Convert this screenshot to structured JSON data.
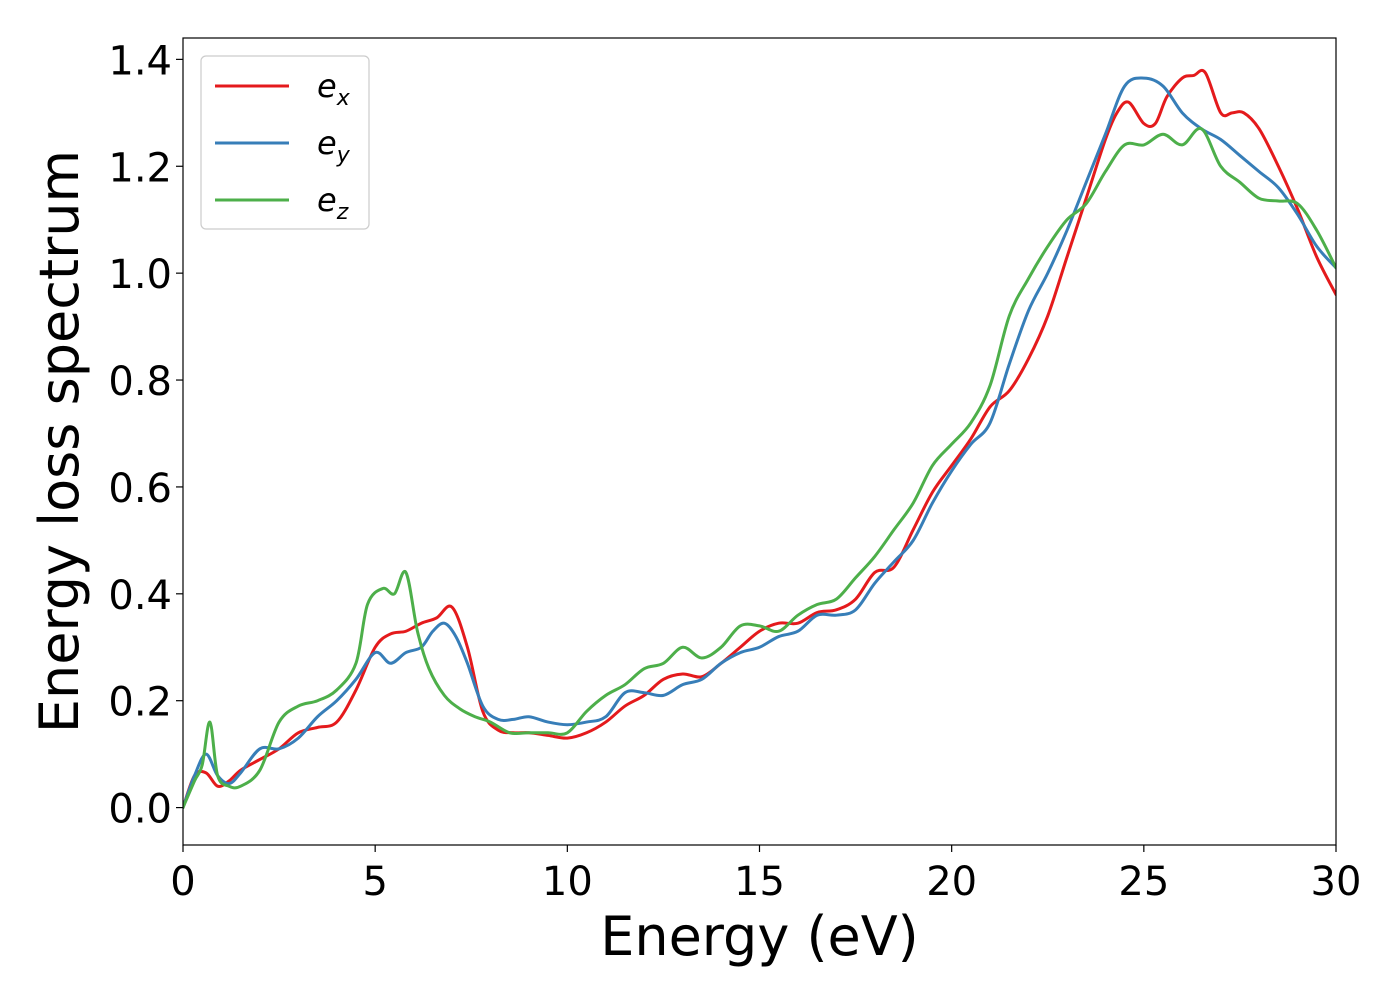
{
  "chart_data": {
    "type": "line",
    "title": "",
    "xlabel": "Energy (eV)",
    "ylabel": "Energy loss spectrum",
    "xlim": [
      0,
      30
    ],
    "ylim": [
      -0.07,
      1.44
    ],
    "xticks": [
      0,
      5,
      10,
      15,
      20,
      25,
      30
    ],
    "xtick_labels": [
      "0",
      "5",
      "10",
      "15",
      "20",
      "25",
      "30"
    ],
    "yticks": [
      0.0,
      0.2,
      0.4,
      0.6,
      0.8,
      1.0,
      1.2,
      1.4
    ],
    "ytick_labels": [
      "0.0",
      "0.2",
      "0.4",
      "0.6",
      "0.8",
      "1.0",
      "1.2",
      "1.4"
    ],
    "grid": false,
    "legend_position": "top-left",
    "series": [
      {
        "name": "e",
        "subscript": "x",
        "color": "#e41a1c",
        "x": [
          0,
          0.3,
          0.6,
          0.9,
          1.2,
          1.5,
          2,
          2.5,
          3,
          3.5,
          4,
          4.5,
          5,
          5.4,
          5.8,
          6.2,
          6.6,
          7,
          7.4,
          7.8,
          8.2,
          8.6,
          9,
          9.5,
          10,
          10.5,
          11,
          11.5,
          12,
          12.5,
          13,
          13.5,
          14,
          14.5,
          15,
          15.5,
          16,
          16.5,
          17,
          17.5,
          18,
          18.5,
          19,
          19.5,
          20,
          20.5,
          21,
          21.5,
          22,
          22.5,
          23,
          23.5,
          24,
          24.3,
          24.6,
          25,
          25.3,
          25.6,
          26,
          26.3,
          26.6,
          27,
          27.3,
          27.6,
          28,
          28.5,
          29,
          29.5,
          30
        ],
        "y": [
          0.0,
          0.06,
          0.065,
          0.04,
          0.05,
          0.07,
          0.09,
          0.11,
          0.14,
          0.15,
          0.16,
          0.22,
          0.3,
          0.325,
          0.33,
          0.345,
          0.355,
          0.375,
          0.3,
          0.18,
          0.145,
          0.14,
          0.14,
          0.135,
          0.13,
          0.14,
          0.16,
          0.19,
          0.21,
          0.24,
          0.25,
          0.245,
          0.27,
          0.3,
          0.33,
          0.345,
          0.345,
          0.365,
          0.37,
          0.39,
          0.44,
          0.45,
          0.52,
          0.59,
          0.64,
          0.69,
          0.75,
          0.78,
          0.84,
          0.92,
          1.03,
          1.14,
          1.25,
          1.3,
          1.32,
          1.28,
          1.28,
          1.33,
          1.365,
          1.37,
          1.375,
          1.3,
          1.3,
          1.3,
          1.27,
          1.2,
          1.12,
          1.03,
          0.96
        ]
      },
      {
        "name": "e",
        "subscript": "y",
        "color": "#377eb8",
        "x": [
          0,
          0.3,
          0.6,
          0.9,
          1.2,
          1.5,
          2,
          2.5,
          3,
          3.5,
          4,
          4.5,
          5,
          5.4,
          5.8,
          6.2,
          6.5,
          6.8,
          7.1,
          7.4,
          7.8,
          8.2,
          8.6,
          9,
          9.5,
          10,
          10.5,
          11,
          11.5,
          12,
          12.5,
          13,
          13.5,
          14,
          14.5,
          15,
          15.5,
          16,
          16.5,
          17,
          17.5,
          18,
          18.5,
          19,
          19.5,
          20,
          20.5,
          21,
          21.5,
          22,
          22.5,
          23,
          23.5,
          24,
          24.5,
          25,
          25.5,
          26,
          26.5,
          27,
          27.5,
          28,
          28.5,
          29,
          29.5,
          30
        ],
        "y": [
          0.0,
          0.06,
          0.1,
          0.06,
          0.045,
          0.065,
          0.11,
          0.11,
          0.13,
          0.17,
          0.2,
          0.24,
          0.29,
          0.27,
          0.29,
          0.3,
          0.33,
          0.345,
          0.32,
          0.27,
          0.19,
          0.165,
          0.165,
          0.17,
          0.16,
          0.155,
          0.16,
          0.17,
          0.215,
          0.215,
          0.21,
          0.23,
          0.24,
          0.27,
          0.29,
          0.3,
          0.32,
          0.33,
          0.36,
          0.36,
          0.37,
          0.42,
          0.46,
          0.5,
          0.57,
          0.63,
          0.68,
          0.72,
          0.83,
          0.93,
          1.0,
          1.08,
          1.17,
          1.26,
          1.35,
          1.365,
          1.35,
          1.3,
          1.27,
          1.25,
          1.22,
          1.19,
          1.16,
          1.11,
          1.05,
          1.01
        ]
      },
      {
        "name": "e",
        "subscript": "z",
        "color": "#4daf4a",
        "x": [
          0,
          0.3,
          0.5,
          0.7,
          0.9,
          1.2,
          1.5,
          2,
          2.5,
          3,
          3.5,
          4,
          4.5,
          4.8,
          5.2,
          5.5,
          5.8,
          6.1,
          6.4,
          6.8,
          7.2,
          7.6,
          8,
          8.5,
          9,
          9.5,
          10,
          10.5,
          11,
          11.5,
          12,
          12.5,
          13,
          13.5,
          14,
          14.5,
          15,
          15.5,
          16,
          16.5,
          17,
          17.5,
          18,
          18.5,
          19,
          19.5,
          20,
          20.5,
          21,
          21.5,
          22,
          22.5,
          23,
          23.5,
          24,
          24.5,
          25,
          25.5,
          26,
          26.5,
          27,
          27.5,
          28,
          28.5,
          29,
          29.5,
          30
        ],
        "y": [
          0.0,
          0.05,
          0.08,
          0.16,
          0.06,
          0.04,
          0.04,
          0.07,
          0.16,
          0.19,
          0.2,
          0.22,
          0.27,
          0.38,
          0.41,
          0.4,
          0.44,
          0.33,
          0.26,
          0.21,
          0.185,
          0.17,
          0.16,
          0.14,
          0.14,
          0.14,
          0.14,
          0.18,
          0.21,
          0.23,
          0.26,
          0.27,
          0.3,
          0.28,
          0.3,
          0.34,
          0.34,
          0.33,
          0.36,
          0.38,
          0.39,
          0.43,
          0.47,
          0.52,
          0.57,
          0.64,
          0.68,
          0.72,
          0.79,
          0.92,
          0.99,
          1.05,
          1.1,
          1.13,
          1.19,
          1.24,
          1.24,
          1.26,
          1.24,
          1.27,
          1.2,
          1.17,
          1.14,
          1.135,
          1.13,
          1.08,
          1.01
        ]
      }
    ]
  }
}
